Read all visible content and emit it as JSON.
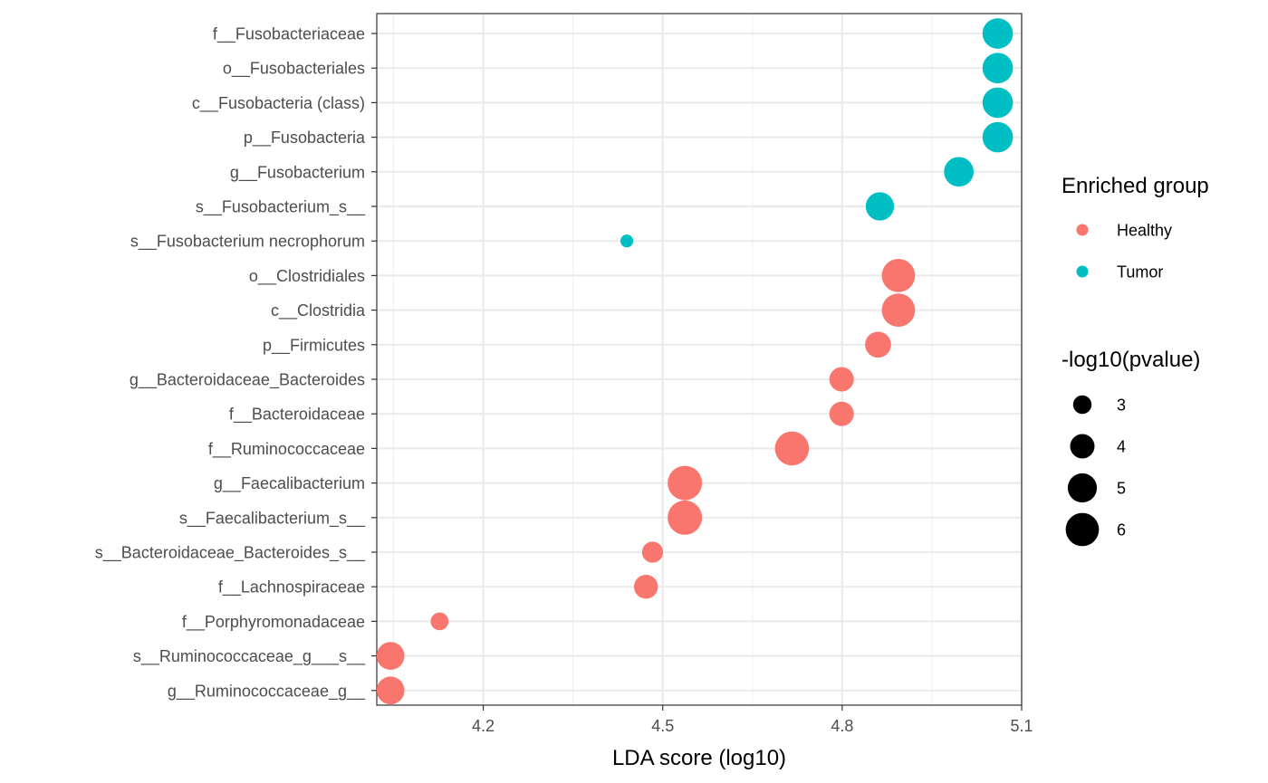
{
  "chart_data": {
    "type": "scatter",
    "xlabel": "LDA score (log10)",
    "ylabel": "",
    "xlim": [
      4.022,
      5.1
    ],
    "x_ticks": [
      4.2,
      4.5,
      4.8,
      5.1
    ],
    "x_tick_labels": [
      "4.2",
      "4.5",
      "4.8",
      "5.1"
    ],
    "x_minor_ticks": [
      4.05,
      4.35,
      4.65,
      4.95
    ],
    "grid": true,
    "size_domain": [
      2.2,
      6.3
    ],
    "points": [
      {
        "taxon": "f__Fusobacteriaceae",
        "lda": 5.06,
        "neglog10p": 5.3,
        "group": "Tumor"
      },
      {
        "taxon": "o__Fusobacteriales",
        "lda": 5.06,
        "neglog10p": 5.3,
        "group": "Tumor"
      },
      {
        "taxon": "c__Fusobacteria (class)",
        "lda": 5.06,
        "neglog10p": 5.3,
        "group": "Tumor"
      },
      {
        "taxon": "p__Fusobacteria",
        "lda": 5.06,
        "neglog10p": 5.3,
        "group": "Tumor"
      },
      {
        "taxon": "g__Fusobacterium",
        "lda": 4.995,
        "neglog10p": 5.1,
        "group": "Tumor"
      },
      {
        "taxon": "s__Fusobacterium_s__",
        "lda": 4.863,
        "neglog10p": 4.8,
        "group": "Tumor"
      },
      {
        "taxon": "s__Fusobacterium necrophorum",
        "lda": 4.44,
        "neglog10p": 2.3,
        "group": "Tumor"
      },
      {
        "taxon": "o__Clostridiales",
        "lda": 4.894,
        "neglog10p": 6.0,
        "group": "Healthy"
      },
      {
        "taxon": "c__Clostridia",
        "lda": 4.894,
        "neglog10p": 6.0,
        "group": "Healthy"
      },
      {
        "taxon": "p__Firmicutes",
        "lda": 4.86,
        "neglog10p": 4.3,
        "group": "Healthy"
      },
      {
        "taxon": "g__Bacteroidaceae_Bacteroides",
        "lda": 4.799,
        "neglog10p": 4.0,
        "group": "Healthy"
      },
      {
        "taxon": "f__Bacteroidaceae",
        "lda": 4.799,
        "neglog10p": 4.0,
        "group": "Healthy"
      },
      {
        "taxon": "f__Ruminococcaceae",
        "lda": 4.716,
        "neglog10p": 6.2,
        "group": "Healthy"
      },
      {
        "taxon": "g__Faecalibacterium",
        "lda": 4.537,
        "neglog10p": 6.3,
        "group": "Healthy"
      },
      {
        "taxon": "s__Faecalibacterium_s__",
        "lda": 4.537,
        "neglog10p": 6.3,
        "group": "Healthy"
      },
      {
        "taxon": "s__Bacteroidaceae_Bacteroides_s__",
        "lda": 4.483,
        "neglog10p": 3.4,
        "group": "Healthy"
      },
      {
        "taxon": "f__Lachnospiraceae",
        "lda": 4.472,
        "neglog10p": 3.9,
        "group": "Healthy"
      },
      {
        "taxon": "f__Porphyromonadaceae",
        "lda": 4.127,
        "neglog10p": 2.9,
        "group": "Healthy"
      },
      {
        "taxon": "s__Ruminococcaceae_g___s__",
        "lda": 4.045,
        "neglog10p": 4.7,
        "group": "Healthy"
      },
      {
        "taxon": "g__Ruminococcaceae_g__",
        "lda": 4.045,
        "neglog10p": 4.7,
        "group": "Healthy"
      }
    ],
    "legend_color": {
      "title": "Enriched group",
      "entries": [
        {
          "label": "Healthy",
          "color": "#F8766D"
        },
        {
          "label": "Tumor",
          "color": "#00BFC4"
        }
      ]
    },
    "legend_size": {
      "title": "-log10(pvalue)",
      "entries": [
        {
          "label": "3",
          "value": 3
        },
        {
          "label": "4",
          "value": 4
        },
        {
          "label": "5",
          "value": 5
        },
        {
          "label": "6",
          "value": 6
        }
      ]
    },
    "legend_placement": "right"
  }
}
